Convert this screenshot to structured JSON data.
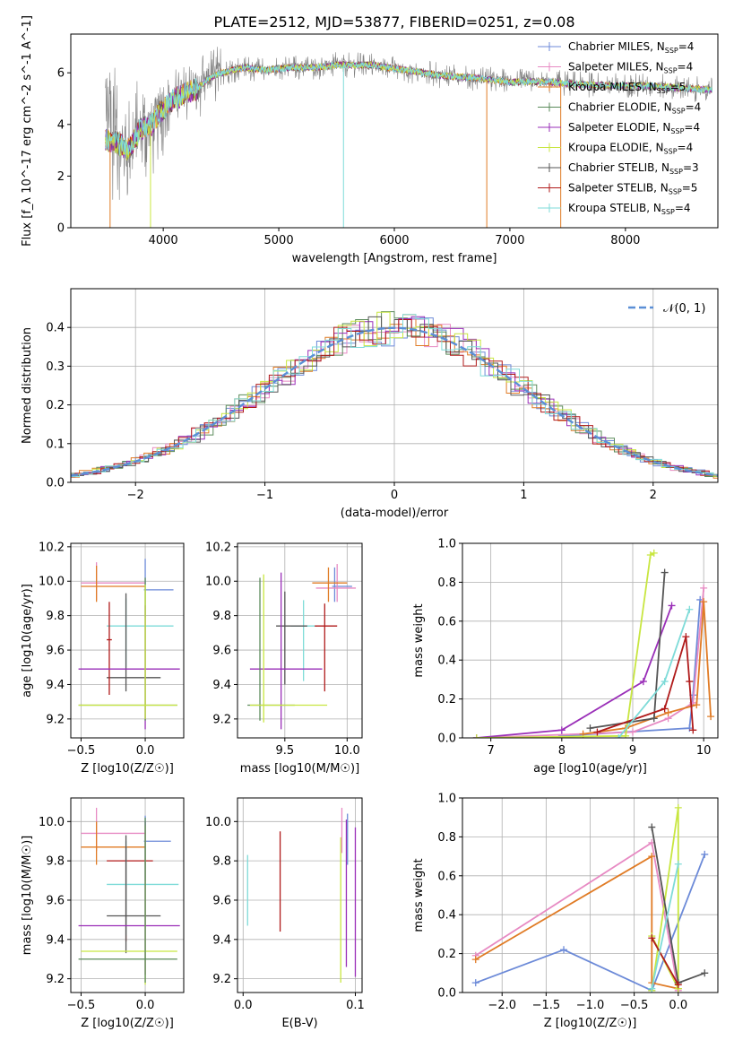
{
  "title": "PLATE=2512, MJD=53877, FIBERID=0251, z=0.08",
  "colors": {
    "chabrier_miles": "#6c8ad8",
    "salpeter_miles": "#e78ac3",
    "kroupa_miles": "#e07b25",
    "chabrier_elodie": "#5a8a5a",
    "salpeter_elodie": "#9a2fb8",
    "kroupa_elodie": "#c8e640",
    "chabrier_stelib": "#555555",
    "salpeter_stelib": "#b01a1a",
    "kroupa_stelib": "#7edbd8",
    "observed": "#808080",
    "normal": "#5b8fd6"
  },
  "legend": [
    {
      "label": "Chabrier MILES, N",
      "sub": "SSP",
      "tail": "=4",
      "color": "chabrier_miles"
    },
    {
      "label": "Salpeter MILES, N",
      "sub": "SSP",
      "tail": "=4",
      "color": "salpeter_miles"
    },
    {
      "label": "Kroupa MILES, N",
      "sub": "SSP",
      "tail": "=5",
      "color": "kroupa_miles"
    },
    {
      "label": "Chabrier ELODIE, N",
      "sub": "SSP",
      "tail": "=4",
      "color": "chabrier_elodie"
    },
    {
      "label": "Salpeter ELODIE, N",
      "sub": "SSP",
      "tail": "=4",
      "color": "salpeter_elodie"
    },
    {
      "label": "Kroupa ELODIE, N",
      "sub": "SSP",
      "tail": "=4",
      "color": "kroupa_elodie"
    },
    {
      "label": "Chabrier STELIB, N",
      "sub": "SSP",
      "tail": "=3",
      "color": "chabrier_stelib"
    },
    {
      "label": "Salpeter STELIB, N",
      "sub": "SSP",
      "tail": "=5",
      "color": "salpeter_stelib"
    },
    {
      "label": "Kroupa STELIB, N",
      "sub": "SSP",
      "tail": "=4",
      "color": "kroupa_stelib"
    }
  ],
  "chart_data": [
    {
      "id": "spectrum",
      "type": "line",
      "xlabel": "wavelength [Angstrom, rest frame]",
      "ylabel": "Flux [f_λ 10^-17 erg cm^-2 s^-1 A^-1]",
      "xlim": [
        3200,
        8800
      ],
      "ylim": [
        0,
        7.5
      ],
      "xticks": [
        4000,
        5000,
        6000,
        7000,
        8000
      ],
      "yticks": [
        0,
        2,
        4,
        6
      ],
      "continuum": [
        [
          3500,
          3.4
        ],
        [
          3600,
          3.3
        ],
        [
          3700,
          3.0
        ],
        [
          3800,
          3.8
        ],
        [
          3900,
          4.0
        ],
        [
          4000,
          4.6
        ],
        [
          4100,
          5.0
        ],
        [
          4200,
          5.2
        ],
        [
          4300,
          5.4
        ],
        [
          4400,
          5.8
        ],
        [
          4500,
          6.0
        ],
        [
          4700,
          6.2
        ],
        [
          4900,
          6.1
        ],
        [
          5100,
          6.2
        ],
        [
          5300,
          6.2
        ],
        [
          5500,
          6.3
        ],
        [
          5800,
          6.3
        ],
        [
          6100,
          6.1
        ],
        [
          6400,
          5.9
        ],
        [
          6700,
          5.8
        ],
        [
          7000,
          5.65
        ],
        [
          7300,
          5.65
        ],
        [
          7600,
          5.55
        ],
        [
          7900,
          5.5
        ],
        [
          8200,
          5.5
        ],
        [
          8500,
          5.4
        ],
        [
          8700,
          5.35
        ]
      ],
      "legend_position": "right"
    },
    {
      "id": "residuals",
      "type": "line",
      "xlabel": "(data-model)/error",
      "ylabel": "Normed distribution",
      "xlim": [
        -2.5,
        2.5
      ],
      "ylim": [
        0,
        0.5
      ],
      "xticks": [
        -2,
        -1,
        0,
        1,
        2
      ],
      "yticks": [
        0.0,
        0.1,
        0.2,
        0.3,
        0.4
      ],
      "legend": "𝒩(0, 1)",
      "grid": true
    },
    {
      "id": "age_vs_Z",
      "type": "scatter",
      "xlabel": "Z [log10(Z/Z☉)]",
      "ylabel": "age [log10(age/yr)]",
      "xlim": [
        -0.58,
        0.3
      ],
      "ylim": [
        9.09,
        10.22
      ],
      "xticks": [
        -0.5,
        0.0
      ],
      "yticks": [
        9.2,
        9.4,
        9.6,
        9.8,
        10.0,
        10.2
      ],
      "grid": true,
      "points": [
        {
          "c": "chabrier_miles",
          "x": 0.0,
          "xe": [
            -0.01,
            0.22
          ],
          "y": 9.95,
          "ye": [
            9.79,
            10.13
          ]
        },
        {
          "c": "salpeter_miles",
          "x": -0.38,
          "xe": [
            -0.5,
            0.0
          ],
          "y": 9.99,
          "ye": [
            9.89,
            10.11
          ]
        },
        {
          "c": "kroupa_miles",
          "x": -0.38,
          "xe": [
            -0.5,
            0.0
          ],
          "y": 9.97,
          "ye": [
            9.88,
            10.09
          ]
        },
        {
          "c": "kroupa_stelib",
          "x": -0.15,
          "xe": [
            -0.3,
            0.22
          ],
          "y": 9.74,
          "ye": [
            9.5,
            9.9
          ]
        },
        {
          "c": "chabrier_stelib",
          "x": -0.15,
          "xe": [
            -0.3,
            0.12
          ],
          "y": 9.44,
          "ye": [
            9.36,
            9.93
          ]
        },
        {
          "c": "salpeter_stelib",
          "x": -0.28,
          "xe": [
            -0.3,
            -0.26
          ],
          "y": 9.66,
          "ye": [
            9.34,
            9.88
          ]
        },
        {
          "c": "salpeter_elodie",
          "x": 0.0,
          "xe": [
            -0.52,
            0.27
          ],
          "y": 9.49,
          "ye": [
            9.14,
            9.86
          ]
        },
        {
          "c": "chabrier_elodie",
          "x": 0.0,
          "xe": [
            -0.52,
            0.25
          ],
          "y": 9.28,
          "ye": [
            9.19,
            10.02
          ]
        },
        {
          "c": "kroupa_elodie",
          "x": 0.0,
          "xe": [
            -0.52,
            0.25
          ],
          "y": 9.28,
          "ye": [
            9.2,
            9.98
          ]
        }
      ]
    },
    {
      "id": "age_vs_mass",
      "type": "scatter",
      "xlabel": "mass [log10(M/M☉)]",
      "ylabel": "",
      "xlim": [
        9.12,
        10.12
      ],
      "ylim": [
        9.09,
        10.22
      ],
      "xticks": [
        9.5,
        10.0
      ],
      "yticks": [
        9.2,
        9.4,
        9.6,
        9.8,
        10.0,
        10.2
      ],
      "grid": true,
      "points": [
        {
          "c": "chabrier_miles",
          "x": 9.9,
          "xe": [
            9.88,
            10.04
          ],
          "y": 9.97,
          "ye": [
            9.88,
            10.08
          ]
        },
        {
          "c": "salpeter_miles",
          "x": 9.92,
          "xe": [
            9.75,
            10.07
          ],
          "y": 9.96,
          "ye": [
            9.88,
            10.1
          ]
        },
        {
          "c": "kroupa_miles",
          "x": 9.85,
          "xe": [
            9.72,
            10.0
          ],
          "y": 9.99,
          "ye": [
            9.88,
            10.08
          ]
        },
        {
          "c": "kroupa_stelib",
          "x": 9.65,
          "xe": [
            9.55,
            9.76
          ],
          "y": 9.74,
          "ye": [
            9.42,
            9.89
          ]
        },
        {
          "c": "chabrier_stelib",
          "x": 9.5,
          "xe": [
            9.43,
            9.68
          ],
          "y": 9.74,
          "ye": [
            9.4,
            9.94
          ]
        },
        {
          "c": "salpeter_stelib",
          "x": 9.82,
          "xe": [
            9.74,
            9.92
          ],
          "y": 9.74,
          "ye": [
            9.36,
            9.87
          ]
        },
        {
          "c": "salpeter_elodie",
          "x": 9.47,
          "xe": [
            9.22,
            9.8
          ],
          "y": 9.49,
          "ye": [
            9.14,
            10.05
          ]
        },
        {
          "c": "chabrier_elodie",
          "x": 9.3,
          "xe": [
            9.2,
            9.58
          ],
          "y": 9.28,
          "ye": [
            9.19,
            10.02
          ]
        },
        {
          "c": "kroupa_elodie",
          "x": 9.33,
          "xe": [
            9.22,
            9.84
          ],
          "y": 9.28,
          "ye": [
            9.18,
            10.04
          ]
        }
      ]
    },
    {
      "id": "weight_vs_age",
      "type": "line",
      "xlabel": "age [log10(age/yr)]",
      "ylabel": "mass weight",
      "xlim": [
        6.6,
        10.2
      ],
      "ylim": [
        0,
        1.0
      ],
      "xticks": [
        7,
        8,
        9,
        10
      ],
      "yticks": [
        0.0,
        0.2,
        0.4,
        0.6,
        0.8,
        1.0
      ],
      "grid": true,
      "series": [
        {
          "c": "chabrier_miles",
          "x": [
            8.0,
            9.8,
            9.85,
            9.95
          ],
          "y": [
            0.01,
            0.05,
            0.22,
            0.71
          ]
        },
        {
          "c": "salpeter_miles",
          "x": [
            6.8,
            9.0,
            9.5,
            9.85,
            10.0
          ],
          "y": [
            0.0,
            0.03,
            0.1,
            0.18,
            0.77
          ]
        },
        {
          "c": "kroupa_miles",
          "x": [
            8.3,
            8.9,
            9.5,
            9.9,
            10.0,
            10.1
          ],
          "y": [
            0.02,
            0.05,
            0.13,
            0.17,
            0.7,
            0.11
          ]
        },
        {
          "c": "salpeter_elodie",
          "x": 6.8,
          "y": 0
        },
        {
          "c": "salpeter_elodie",
          "x": [
            6.8,
            8.0,
            9.15,
            9.55
          ],
          "y": [
            0.0,
            0.04,
            0.29,
            0.68
          ]
        },
        {
          "c": "kroupa_elodie",
          "x": [
            6.8,
            8.9,
            9.25,
            9.3
          ],
          "y": [
            0.0,
            0.01,
            0.94,
            0.95
          ]
        },
        {
          "c": "chabrier_stelib",
          "x": [
            8.4,
            9.3,
            9.45
          ],
          "y": [
            0.05,
            0.1,
            0.85
          ]
        },
        {
          "c": "salpeter_stelib",
          "x": [
            8.5,
            9.45,
            9.75,
            9.8,
            9.85
          ],
          "y": [
            0.03,
            0.15,
            0.52,
            0.29,
            0.04
          ]
        },
        {
          "c": "kroupa_stelib",
          "x": [
            8.8,
            9.45,
            9.8
          ],
          "y": [
            0.0,
            0.29,
            0.66
          ]
        }
      ]
    },
    {
      "id": "mass_vs_Z",
      "type": "scatter",
      "xlabel": "Z [log10(Z/Z☉)]",
      "ylabel": "mass [log10(M/M☉)]",
      "xlim": [
        -0.58,
        0.3
      ],
      "ylim": [
        9.13,
        10.12
      ],
      "xticks": [
        -0.5,
        0.0
      ],
      "yticks": [
        9.2,
        9.4,
        9.6,
        9.8,
        10.0
      ],
      "grid": true,
      "points": [
        {
          "c": "chabrier_miles",
          "x": 0.0,
          "xe": [
            -0.01,
            0.2
          ],
          "y": 9.9,
          "ye": [
            9.7,
            10.03
          ]
        },
        {
          "c": "salpeter_miles",
          "x": -0.38,
          "xe": [
            -0.5,
            0.0
          ],
          "y": 9.94,
          "ye": [
            9.85,
            10.07
          ]
        },
        {
          "c": "kroupa_miles",
          "x": -0.38,
          "xe": [
            -0.5,
            0.0
          ],
          "y": 9.87,
          "ye": [
            9.78,
            10.0
          ]
        },
        {
          "c": "salpeter_stelib",
          "x": -0.15,
          "xe": [
            -0.3,
            0.06
          ],
          "y": 9.8,
          "ye": [
            9.39,
            9.87
          ]
        },
        {
          "c": "kroupa_stelib",
          "x": -0.15,
          "xe": [
            -0.3,
            0.26
          ],
          "y": 9.68,
          "ye": [
            9.42,
            9.9
          ]
        },
        {
          "c": "chabrier_stelib",
          "x": -0.15,
          "xe": [
            -0.3,
            0.12
          ],
          "y": 9.52,
          "ye": [
            9.33,
            9.93
          ]
        },
        {
          "c": "salpeter_elodie",
          "x": 0.0,
          "xe": [
            -0.52,
            0.27
          ],
          "y": 9.47,
          "ye": [
            9.22,
            10.0
          ]
        },
        {
          "c": "kroupa_elodie",
          "x": 0.0,
          "xe": [
            -0.5,
            0.25
          ],
          "y": 9.34,
          "ye": [
            9.17,
            9.98
          ]
        },
        {
          "c": "chabrier_elodie",
          "x": 0.0,
          "xe": [
            -0.52,
            0.25
          ],
          "y": 9.3,
          "ye": [
            9.18,
            10.02
          ]
        }
      ]
    },
    {
      "id": "mass_vs_ebv",
      "type": "scatter",
      "xlabel": "E(B-V)",
      "ylabel": "",
      "xlim": [
        -0.005,
        0.106
      ],
      "ylim": [
        9.13,
        10.12
      ],
      "xticks": [
        0.0,
        0.1
      ],
      "yticks": [
        9.2,
        9.4,
        9.6,
        9.8,
        10.0
      ],
      "grid": true,
      "bars": [
        {
          "c": "kroupa_stelib",
          "x": 0.004,
          "ye": [
            9.47,
            9.83
          ]
        },
        {
          "c": "salpeter_stelib",
          "x": 0.033,
          "ye": [
            9.44,
            9.95
          ]
        },
        {
          "c": "kroupa_elodie",
          "x": 0.087,
          "ye": [
            9.18,
            9.92
          ]
        },
        {
          "c": "salpeter_miles",
          "x": 0.088,
          "ye": [
            9.84,
            10.07
          ]
        },
        {
          "c": "salpeter_elodie",
          "x": 0.092,
          "ye": [
            9.26,
            10.01
          ]
        },
        {
          "c": "chabrier_miles",
          "x": 0.093,
          "ye": [
            9.78,
            10.04
          ]
        },
        {
          "c": "salpeter_elodie",
          "x": 0.1,
          "ye": [
            9.21,
            9.97
          ]
        }
      ]
    },
    {
      "id": "weight_vs_Z",
      "type": "line",
      "xlabel": "Z [log10(Z/Z☉)]",
      "ylabel": "mass weight",
      "xlim": [
        -2.45,
        0.45
      ],
      "ylim": [
        0,
        1.0
      ],
      "xticks": [
        -2.0,
        -1.5,
        -1.0,
        -0.5,
        0.0
      ],
      "yticks": [
        0.0,
        0.2,
        0.4,
        0.6,
        0.8,
        1.0
      ],
      "grid": true,
      "series": [
        {
          "c": "chabrier_miles",
          "x": [
            -2.3,
            -1.3,
            -0.3,
            0.3
          ],
          "y": [
            0.05,
            0.22,
            0.01,
            0.71
          ]
        },
        {
          "c": "salpeter_miles",
          "x": [
            -2.3,
            -0.3,
            0.0
          ],
          "y": [
            0.19,
            0.77,
            0.01
          ]
        },
        {
          "c": "kroupa_miles",
          "x": [
            -2.3,
            -0.3,
            -0.3,
            0.0
          ],
          "y": [
            0.17,
            0.7,
            0.05,
            0.02
          ]
        },
        {
          "c": "kroupa_elodie",
          "x": [
            -0.3,
            0.0,
            0.0,
            -0.3
          ],
          "y": [
            0.01,
            0.95,
            0.02,
            0.29
          ]
        },
        {
          "c": "chabrier_stelib",
          "x": [
            -0.3,
            0.0,
            0.3
          ],
          "y": [
            0.85,
            0.05,
            0.1
          ]
        },
        {
          "c": "salpeter_stelib",
          "x": [
            -0.3,
            0.0
          ],
          "y": [
            0.28,
            0.04
          ]
        },
        {
          "c": "kroupa_stelib",
          "x": [
            -0.3,
            0.0
          ],
          "y": [
            0.02,
            0.66
          ]
        }
      ]
    }
  ]
}
